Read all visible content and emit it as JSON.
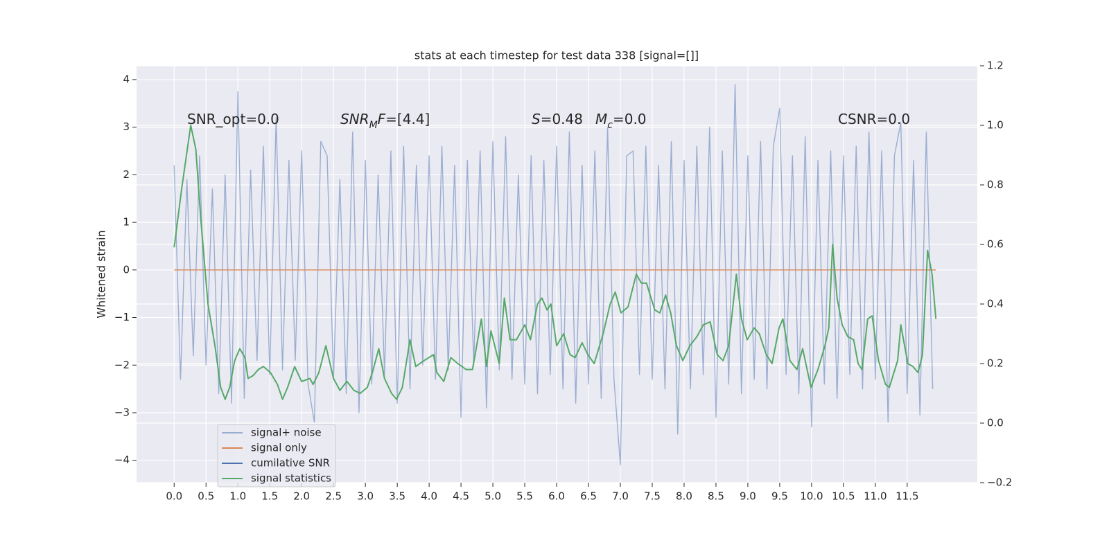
{
  "chart_data": {
    "type": "line",
    "title": "stats at each timestep for test data 338 [signal=[]]",
    "ylabel": "Whitened strain",
    "grid": true,
    "legend": "lower left",
    "xlim": [
      -0.59,
      12.6
    ],
    "ylim": [
      -4.47,
      4.29
    ],
    "y2lim": [
      -0.2,
      1.2
    ],
    "xticks": [
      {
        "value": 0,
        "label": "0.0"
      },
      {
        "value": 0.5,
        "label": "0.5"
      },
      {
        "value": 1,
        "label": "1.0"
      },
      {
        "value": 1.5,
        "label": "1.5"
      },
      {
        "value": 2,
        "label": "2.0"
      },
      {
        "value": 2.5,
        "label": "2.5"
      },
      {
        "value": 3,
        "label": "3.0"
      },
      {
        "value": 3.5,
        "label": "3.5"
      },
      {
        "value": 4,
        "label": "4.0"
      },
      {
        "value": 4.5,
        "label": "4.5"
      },
      {
        "value": 5,
        "label": "5.0"
      },
      {
        "value": 5.5,
        "label": "5.5"
      },
      {
        "value": 6,
        "label": "6.0"
      },
      {
        "value": 6.5,
        "label": "6.5"
      },
      {
        "value": 7,
        "label": "7.0"
      },
      {
        "value": 7.5,
        "label": "7.5"
      },
      {
        "value": 8,
        "label": "8.0"
      },
      {
        "value": 8.5,
        "label": "8.5"
      },
      {
        "value": 9,
        "label": "9.0"
      },
      {
        "value": 9.5,
        "label": "9.5"
      },
      {
        "value": 10,
        "label": "10.0"
      },
      {
        "value": 10.5,
        "label": "10.5"
      },
      {
        "value": 11,
        "label": "11.0"
      },
      {
        "value": 11.5,
        "label": "11.5"
      }
    ],
    "yticks": [
      {
        "value": -4,
        "label": "−4"
      },
      {
        "value": -3,
        "label": "−3"
      },
      {
        "value": -2,
        "label": "−2"
      },
      {
        "value": -1,
        "label": "−1"
      },
      0,
      1,
      2,
      3,
      4
    ],
    "y2ticks": [
      {
        "value": -0.2,
        "label": "−0.2"
      },
      {
        "value": 0,
        "label": "0.0"
      },
      {
        "value": 0.2,
        "label": "0.2"
      },
      {
        "value": 0.4,
        "label": "0.4"
      },
      {
        "value": 0.6,
        "label": "0.6"
      },
      {
        "value": 0.8,
        "label": "0.8"
      },
      {
        "value": 1,
        "label": "1.0"
      },
      {
        "value": 1.2,
        "label": "1.2"
      }
    ],
    "annotations": [
      {
        "parts": [
          {
            "text": "SNR_opt=0.0"
          }
        ]
      },
      {
        "parts": [
          {
            "text": "SNR",
            "italic": true
          },
          {
            "text": "M",
            "italic": true,
            "sub": true
          },
          {
            "text": "F",
            "italic": true
          },
          {
            "text": "=[4.4]"
          }
        ]
      },
      {
        "parts": [
          {
            "text": "S",
            "italic": true
          },
          {
            "text": "=0.48"
          }
        ]
      },
      {
        "parts": [
          {
            "text": "M",
            "italic": true
          },
          {
            "text": "c",
            "italic": true,
            "sub": true
          },
          {
            "text": "=0.0"
          }
        ]
      },
      {
        "parts": [
          {
            "text": "CSNR=0.0"
          }
        ]
      }
    ],
    "series": [
      {
        "name": "signal+ noise",
        "color": "#4c72b0",
        "opacity": 0.5,
        "x": [
          0,
          0.1,
          0.2,
          0.3,
          0.4,
          0.5,
          0.6,
          0.7,
          0.8,
          0.9,
          1,
          1.1,
          1.2,
          1.3,
          1.4,
          1.5,
          1.6,
          1.7,
          1.8,
          1.9,
          2,
          2.1,
          2.2,
          2.3,
          2.4,
          2.5,
          2.6,
          2.7,
          2.8,
          2.9,
          3,
          3.1,
          3.2,
          3.3,
          3.4,
          3.5,
          3.6,
          3.7,
          3.8,
          3.9,
          4,
          4.1,
          4.2,
          4.3,
          4.4,
          4.5,
          4.6,
          4.7,
          4.8,
          4.9,
          5,
          5.1,
          5.2,
          5.3,
          5.4,
          5.5,
          5.6,
          5.7,
          5.8,
          5.9,
          6,
          6.1,
          6.2,
          6.3,
          6.4,
          6.5,
          6.6,
          6.7,
          6.8,
          6.9,
          7,
          7.1,
          7.2,
          7.3,
          7.4,
          7.5,
          7.6,
          7.7,
          7.8,
          7.9,
          8,
          8.1,
          8.2,
          8.3,
          8.4,
          8.5,
          8.6,
          8.7,
          8.8,
          8.9,
          9,
          9.1,
          9.2,
          9.3,
          9.4,
          9.5,
          9.6,
          9.7,
          9.8,
          9.9,
          10,
          10.1,
          10.2,
          10.3,
          10.4,
          10.5,
          10.6,
          10.7,
          10.8,
          10.9,
          11,
          11.1,
          11.2,
          11.3,
          11.4,
          11.5,
          11.6,
          11.7,
          11.8,
          11.9
        ],
        "values": [
          2.2,
          -2.3,
          1.9,
          -1.8,
          2.4,
          -2.0,
          1.7,
          -2.6,
          2.0,
          -2.8,
          3.75,
          -2.7,
          2.1,
          -1.9,
          2.6,
          -2.2,
          3.2,
          -2.1,
          2.3,
          -1.9,
          2.5,
          -2.4,
          -3.2,
          2.7,
          2.4,
          -2.3,
          1.9,
          -2.6,
          2.9,
          -3.0,
          2.3,
          -2.4,
          2.0,
          -2.2,
          2.5,
          -2.8,
          2.6,
          -2.5,
          2.2,
          -2.0,
          2.4,
          -2.3,
          2.6,
          -2.1,
          2.2,
          -3.1,
          2.3,
          -2.0,
          2.5,
          -2.9,
          2.7,
          -2.1,
          2.8,
          -2.3,
          2.0,
          -2.4,
          2.4,
          -2.6,
          2.3,
          -2.2,
          2.6,
          -2.5,
          2.9,
          -2.8,
          2.2,
          -2.4,
          2.5,
          -2.7,
          3.0,
          -2.3,
          -4.1,
          2.4,
          2.5,
          -2.2,
          2.6,
          -2.3,
          2.2,
          -2.5,
          2.7,
          -3.45,
          2.3,
          -2.5,
          2.6,
          -2.2,
          3.0,
          -3.1,
          2.5,
          -2.4,
          3.9,
          -2.6,
          2.4,
          -2.3,
          2.7,
          -2.5,
          2.6,
          3.4,
          -2.2,
          2.4,
          -2.6,
          2.8,
          -3.3,
          2.3,
          -2.4,
          2.5,
          -2.7,
          2.4,
          -2.2,
          2.6,
          -2.5,
          2.9,
          -2.3,
          2.5,
          -3.2,
          2.4,
          3.1,
          -2.6,
          2.3,
          -3.05,
          2.9,
          -2.5
        ]
      },
      {
        "name": "signal only",
        "color": "#dd8452",
        "x": [
          0,
          11.95
        ],
        "values": [
          0,
          0
        ]
      },
      {
        "name": "cumilative SNR",
        "color": "#4c72b0",
        "x": [],
        "values": []
      },
      {
        "name": "signal statistics",
        "color": "#55a868",
        "axis": "y2",
        "x": [
          0,
          0.12,
          0.26,
          0.34,
          0.42,
          0.53,
          0.64,
          0.73,
          0.8,
          0.87,
          0.95,
          1.03,
          1.11,
          1.16,
          1.24,
          1.32,
          1.4,
          1.51,
          1.62,
          1.7,
          1.78,
          1.89,
          2,
          2.13,
          2.18,
          2.27,
          2.38,
          2.5,
          2.6,
          2.71,
          2.82,
          2.92,
          3.03,
          3.11,
          3.21,
          3.3,
          3.41,
          3.49,
          3.58,
          3.7,
          3.79,
          3.92,
          4.07,
          4.12,
          4.23,
          4.34,
          4.45,
          4.58,
          4.68,
          4.82,
          4.9,
          4.97,
          5.1,
          5.18,
          5.27,
          5.37,
          5.5,
          5.59,
          5.7,
          5.77,
          5.85,
          5.91,
          6,
          6.11,
          6.21,
          6.29,
          6.4,
          6.49,
          6.59,
          6.73,
          6.84,
          6.92,
          7.01,
          7.12,
          7.25,
          7.33,
          7.41,
          7.54,
          7.62,
          7.71,
          7.79,
          7.88,
          7.98,
          8.09,
          8.2,
          8.3,
          8.41,
          8.52,
          8.61,
          8.7,
          8.82,
          8.9,
          8.99,
          9.1,
          9.18,
          9.29,
          9.38,
          9.49,
          9.55,
          9.66,
          9.77,
          9.86,
          9.99,
          10.1,
          10.21,
          10.27,
          10.33,
          10.4,
          10.48,
          10.57,
          10.66,
          10.73,
          10.79,
          10.88,
          10.95,
          11.05,
          11.16,
          11.22,
          11.35,
          11.4,
          11.51,
          11.59,
          11.67,
          11.74,
          11.82,
          11.89,
          11.95
        ],
        "values": [
          0.59,
          0.79,
          1.0,
          0.92,
          0.68,
          0.4,
          0.26,
          0.12,
          0.08,
          0.12,
          0.21,
          0.25,
          0.22,
          0.15,
          0.16,
          0.18,
          0.19,
          0.17,
          0.13,
          0.08,
          0.12,
          0.19,
          0.14,
          0.15,
          0.13,
          0.17,
          0.26,
          0.15,
          0.11,
          0.14,
          0.11,
          0.1,
          0.12,
          0.17,
          0.25,
          0.15,
          0.1,
          0.08,
          0.12,
          0.28,
          0.19,
          0.21,
          0.23,
          0.17,
          0.14,
          0.22,
          0.2,
          0.18,
          0.18,
          0.35,
          0.19,
          0.31,
          0.2,
          0.42,
          0.28,
          0.28,
          0.33,
          0.28,
          0.4,
          0.42,
          0.38,
          0.4,
          0.26,
          0.3,
          0.23,
          0.22,
          0.27,
          0.23,
          0.2,
          0.3,
          0.4,
          0.44,
          0.37,
          0.39,
          0.5,
          0.47,
          0.47,
          0.38,
          0.37,
          0.43,
          0.37,
          0.26,
          0.21,
          0.26,
          0.29,
          0.33,
          0.34,
          0.23,
          0.21,
          0.26,
          0.5,
          0.35,
          0.28,
          0.32,
          0.3,
          0.23,
          0.2,
          0.32,
          0.35,
          0.21,
          0.18,
          0.25,
          0.12,
          0.18,
          0.26,
          0.32,
          0.6,
          0.42,
          0.33,
          0.29,
          0.28,
          0.2,
          0.18,
          0.35,
          0.36,
          0.21,
          0.13,
          0.12,
          0.21,
          0.33,
          0.2,
          0.19,
          0.17,
          0.23,
          0.58,
          0.5,
          0.35
        ]
      }
    ]
  }
}
